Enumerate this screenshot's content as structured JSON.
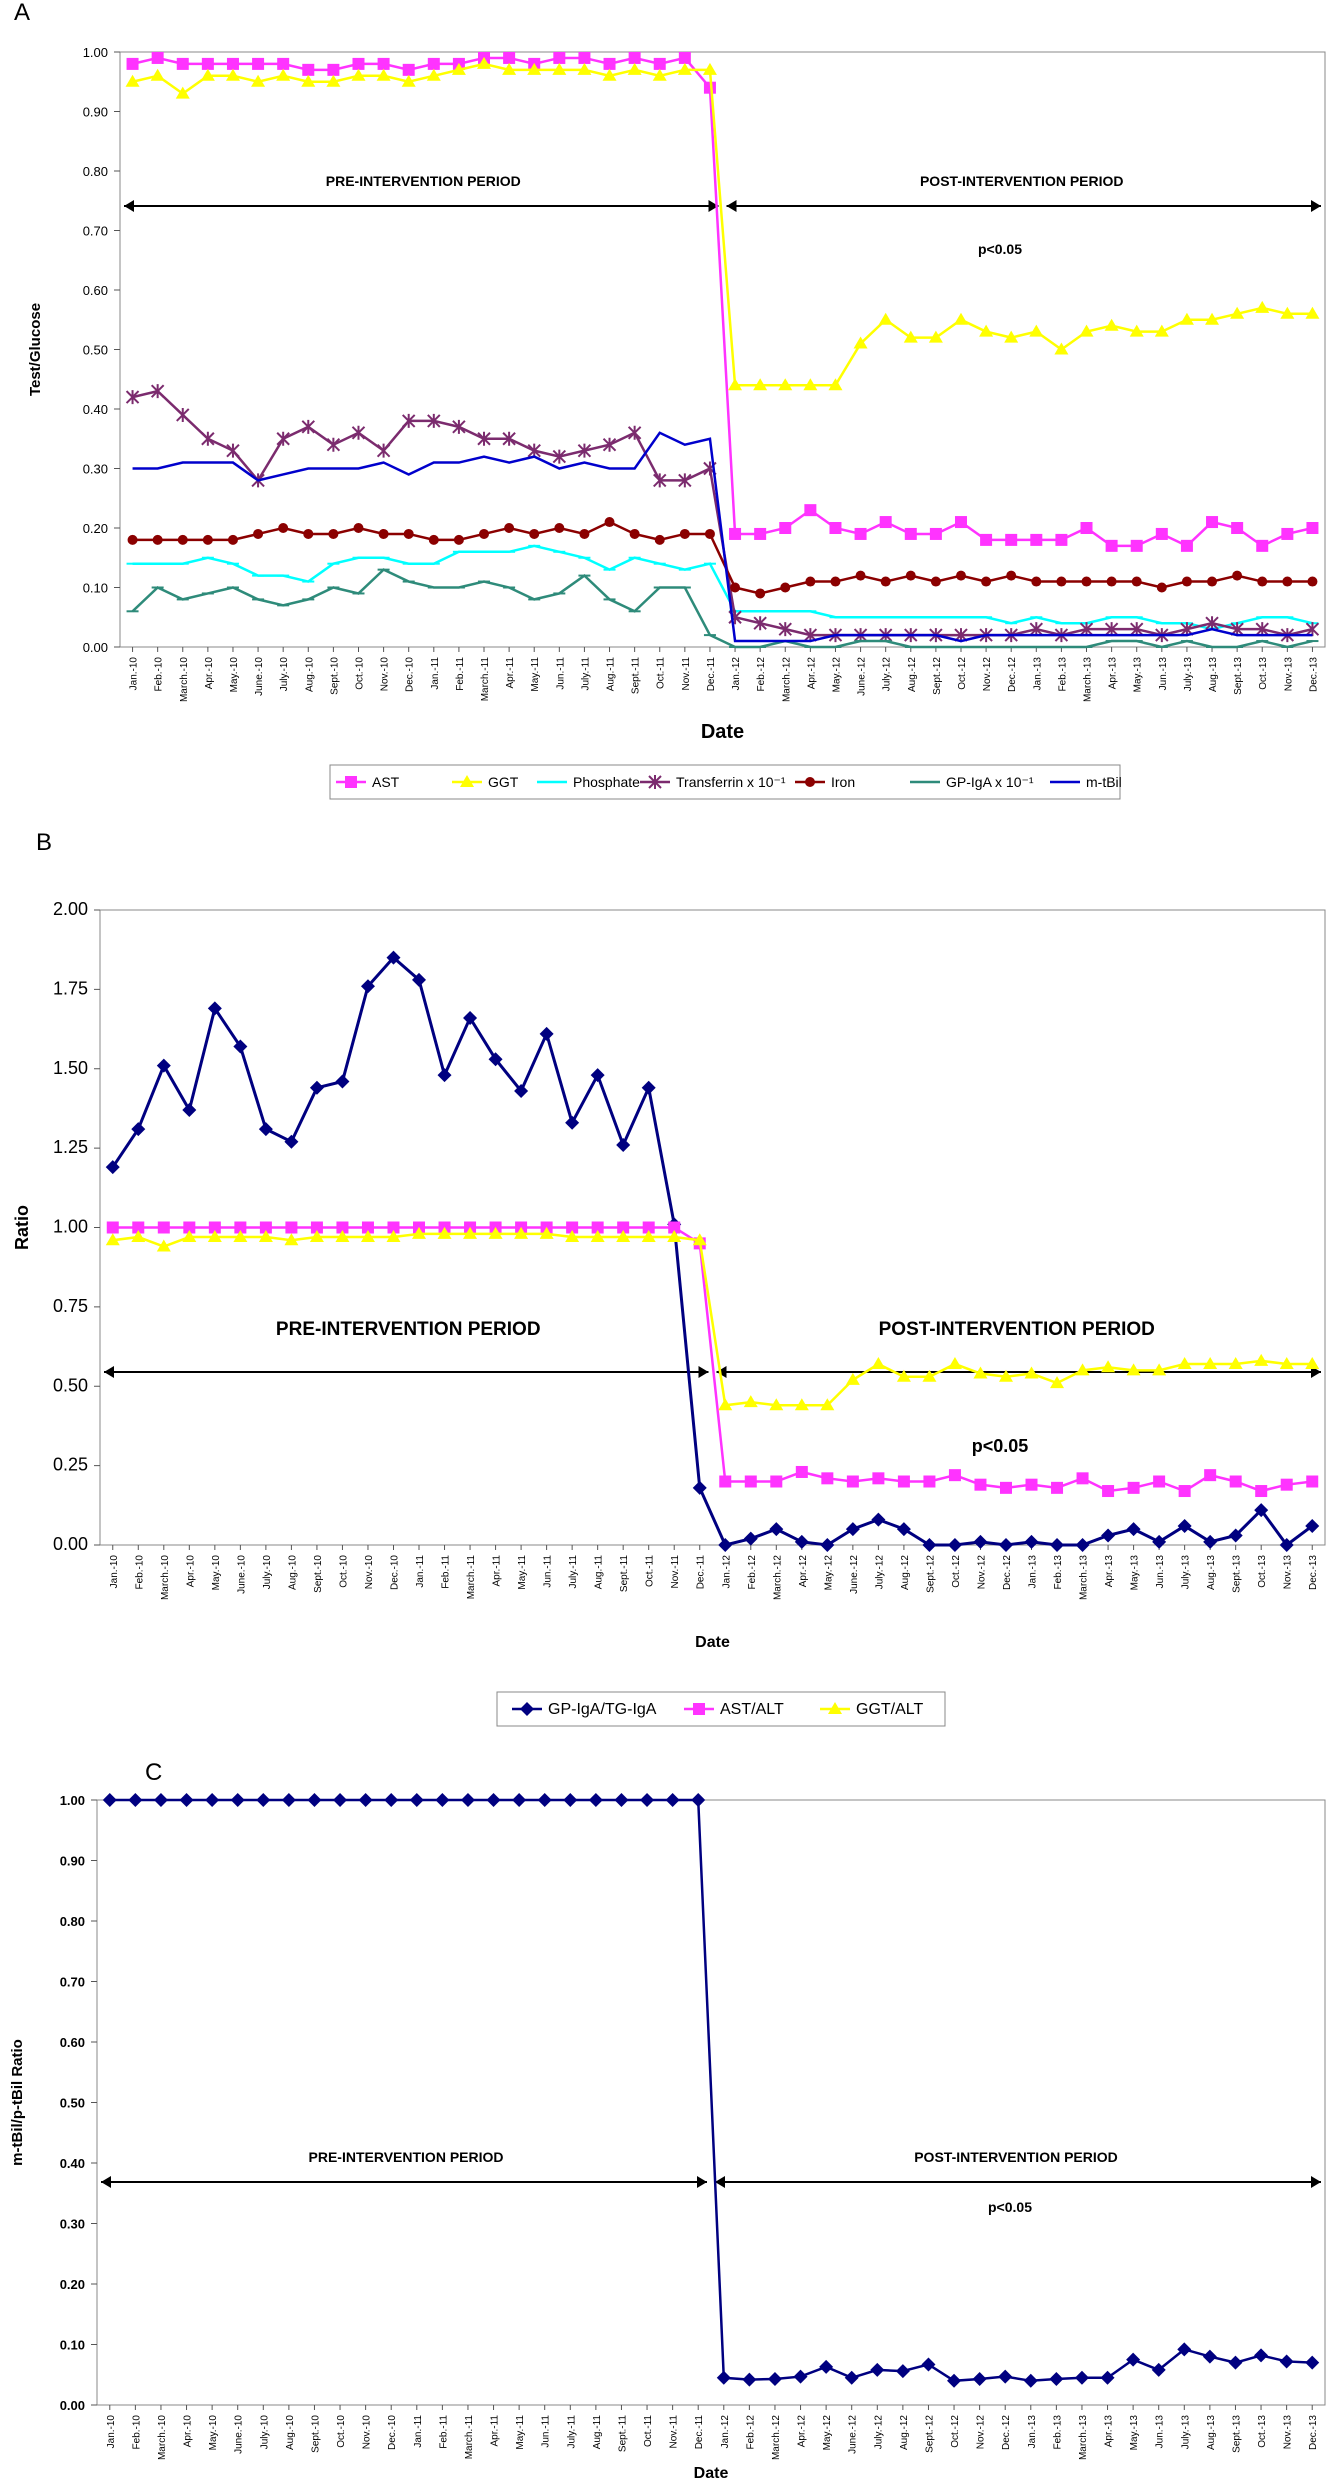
{
  "months": [
    "Jan.-10",
    "Feb.-10",
    "March.-10",
    "Apr.-10",
    "May.-10",
    "June.-10",
    "July.-10",
    "Aug.-10",
    "Sept.-10",
    "Oct.-10",
    "Nov.-10",
    "Dec.-10",
    "Jan.-11",
    "Feb.-11",
    "March.-11",
    "Apr.-11",
    "May.-11",
    "Jun.-11",
    "July.-11",
    "Aug.-11",
    "Sept.-11",
    "Oct.-11",
    "Nov.-11",
    "Dec.-11",
    "Jan.-12",
    "Feb.-12",
    "March.-12",
    "Apr.-12",
    "May.-12",
    "June.-12",
    "July.-12",
    "Aug.-12",
    "Sept.-12",
    "Oct.-12",
    "Nov.-12",
    "Dec.-12",
    "Jan.-13",
    "Feb.-13",
    "March.-13",
    "Apr.-13",
    "May.-13",
    "Jun.-13",
    "July.-13",
    "Aug.-13",
    "Sept.-13",
    "Oct.-13",
    "Nov.-13",
    "Dec.-13"
  ],
  "chart_data": [
    {
      "type": "line",
      "panel_label": "A",
      "title": "",
      "xlabel": "Date",
      "ylabel": "Test/Glucose",
      "ylim": [
        0,
        1.0
      ],
      "yticks": [
        "0.00",
        "0.10",
        "0.20",
        "0.30",
        "0.40",
        "0.50",
        "0.60",
        "0.70",
        "0.80",
        "0.90",
        "1.00"
      ],
      "pre_label": "PRE-INTERVENTION PERIOD",
      "post_label": "POST-INTERVENTION PERIOD",
      "pvalue": "p<0.05",
      "series": [
        {
          "name": "AST",
          "color": "#ff33ff",
          "marker": "square",
          "values": [
            0.98,
            0.99,
            0.98,
            0.98,
            0.98,
            0.98,
            0.98,
            0.97,
            0.97,
            0.98,
            0.98,
            0.97,
            0.98,
            0.98,
            0.99,
            0.99,
            0.98,
            0.99,
            0.99,
            0.98,
            0.99,
            0.98,
            0.99,
            0.94,
            0.19,
            0.19,
            0.2,
            0.23,
            0.2,
            0.19,
            0.21,
            0.19,
            0.19,
            0.21,
            0.18,
            0.18,
            0.18,
            0.18,
            0.2,
            0.17,
            0.17,
            0.19,
            0.17,
            0.21,
            0.2,
            0.17,
            0.19,
            0.2
          ]
        },
        {
          "name": "GGT",
          "color": "#ffff00",
          "marker": "triangle",
          "values": [
            0.95,
            0.96,
            0.93,
            0.96,
            0.96,
            0.95,
            0.96,
            0.95,
            0.95,
            0.96,
            0.96,
            0.95,
            0.96,
            0.97,
            0.98,
            0.97,
            0.97,
            0.97,
            0.97,
            0.96,
            0.97,
            0.96,
            0.97,
            0.97,
            0.44,
            0.44,
            0.44,
            0.44,
            0.44,
            0.51,
            0.55,
            0.52,
            0.52,
            0.55,
            0.53,
            0.52,
            0.53,
            0.5,
            0.53,
            0.54,
            0.53,
            0.53,
            0.55,
            0.55,
            0.56,
            0.57,
            0.56,
            0.56
          ]
        },
        {
          "name": "Phosphate",
          "color": "#00ffff",
          "marker": "dash",
          "values": [
            0.14,
            0.14,
            0.14,
            0.15,
            0.14,
            0.12,
            0.12,
            0.11,
            0.14,
            0.15,
            0.15,
            0.14,
            0.14,
            0.16,
            0.16,
            0.16,
            0.17,
            0.16,
            0.15,
            0.13,
            0.15,
            0.14,
            0.13,
            0.14,
            0.06,
            0.06,
            0.06,
            0.06,
            0.05,
            0.05,
            0.05,
            0.05,
            0.05,
            0.05,
            0.05,
            0.04,
            0.05,
            0.04,
            0.04,
            0.05,
            0.05,
            0.04,
            0.04,
            0.03,
            0.04,
            0.05,
            0.05,
            0.04
          ]
        },
        {
          "name": "Transferrin",
          "suffix": "x 10⁻¹",
          "color": "#7b2b6e",
          "marker": "star",
          "values": [
            0.42,
            0.43,
            0.39,
            0.35,
            0.33,
            0.28,
            0.35,
            0.37,
            0.34,
            0.36,
            0.33,
            0.38,
            0.38,
            0.37,
            0.35,
            0.35,
            0.33,
            0.32,
            0.33,
            0.34,
            0.36,
            0.28,
            0.28,
            0.3,
            0.05,
            0.04,
            0.03,
            0.02,
            0.02,
            0.02,
            0.02,
            0.02,
            0.02,
            0.02,
            0.02,
            0.02,
            0.03,
            0.02,
            0.03,
            0.03,
            0.03,
            0.02,
            0.03,
            0.04,
            0.03,
            0.03,
            0.02,
            0.03
          ]
        },
        {
          "name": "Iron",
          "color": "#8b0000",
          "marker": "circle",
          "values": [
            0.18,
            0.18,
            0.18,
            0.18,
            0.18,
            0.19,
            0.2,
            0.19,
            0.19,
            0.2,
            0.19,
            0.19,
            0.18,
            0.18,
            0.19,
            0.2,
            0.19,
            0.2,
            0.19,
            0.21,
            0.19,
            0.18,
            0.19,
            0.19,
            0.1,
            0.09,
            0.1,
            0.11,
            0.11,
            0.12,
            0.11,
            0.12,
            0.11,
            0.12,
            0.11,
            0.12,
            0.11,
            0.11,
            0.11,
            0.11,
            0.11,
            0.1,
            0.11,
            0.11,
            0.12,
            0.11,
            0.11,
            0.11
          ]
        },
        {
          "name": "GP-IgA",
          "suffix": "x 10⁻¹",
          "color": "#2e8b7a",
          "marker": "dash",
          "values": [
            0.06,
            0.1,
            0.08,
            0.09,
            0.1,
            0.08,
            0.07,
            0.08,
            0.1,
            0.09,
            0.13,
            0.11,
            0.1,
            0.1,
            0.11,
            0.1,
            0.08,
            0.09,
            0.12,
            0.08,
            0.06,
            0.1,
            0.1,
            0.02,
            0.0,
            0.0,
            0.01,
            0.0,
            0.0,
            0.01,
            0.01,
            0.0,
            0.0,
            0.0,
            0.0,
            0.0,
            0.0,
            0.0,
            0.0,
            0.01,
            0.01,
            0.0,
            0.01,
            0.0,
            0.0,
            0.01,
            0.0,
            0.01
          ]
        },
        {
          "name": "m-tBil",
          "color": "#0000cc",
          "marker": "none",
          "values": [
            0.3,
            0.3,
            0.31,
            0.31,
            0.31,
            0.28,
            0.29,
            0.3,
            0.3,
            0.3,
            0.31,
            0.29,
            0.31,
            0.31,
            0.32,
            0.31,
            0.32,
            0.3,
            0.31,
            0.3,
            0.3,
            0.36,
            0.34,
            0.35,
            0.01,
            0.01,
            0.01,
            0.01,
            0.02,
            0.02,
            0.02,
            0.02,
            0.02,
            0.01,
            0.02,
            0.02,
            0.02,
            0.02,
            0.02,
            0.02,
            0.02,
            0.02,
            0.02,
            0.03,
            0.02,
            0.02,
            0.02,
            0.02
          ]
        }
      ]
    },
    {
      "type": "line",
      "panel_label": "B",
      "title": "",
      "xlabel": "Date",
      "ylabel": "Ratio",
      "ylim": [
        0,
        2.0
      ],
      "yticks": [
        "0.00",
        "0.25",
        "0.50",
        "0.75",
        "1.00",
        "1.25",
        "1.50",
        "1.75",
        "2.00"
      ],
      "pre_label": "PRE-INTERVENTION PERIOD",
      "post_label": "POST-INTERVENTION PERIOD",
      "pvalue": "p<0.05",
      "series": [
        {
          "name": "GP-IgA/TG-IgA",
          "color": "#000080",
          "marker": "diamond",
          "values": [
            1.19,
            1.31,
            1.51,
            1.37,
            1.69,
            1.57,
            1.31,
            1.27,
            1.44,
            1.46,
            1.76,
            1.85,
            1.78,
            1.48,
            1.66,
            1.53,
            1.43,
            1.61,
            1.33,
            1.48,
            1.26,
            1.44,
            1.01,
            0.18,
            0.0,
            0.02,
            0.05,
            0.01,
            0.0,
            0.05,
            0.08,
            0.05,
            0.0,
            0.0,
            0.01,
            0.0,
            0.01,
            0.0,
            0.0,
            0.03,
            0.05,
            0.01,
            0.06,
            0.01,
            0.03,
            0.11,
            0.0,
            0.06
          ]
        },
        {
          "name": "AST/ALT",
          "color": "#ff33ff",
          "marker": "square",
          "values": [
            1.0,
            1.0,
            1.0,
            1.0,
            1.0,
            1.0,
            1.0,
            1.0,
            1.0,
            1.0,
            1.0,
            1.0,
            1.0,
            1.0,
            1.0,
            1.0,
            1.0,
            1.0,
            1.0,
            1.0,
            1.0,
            1.0,
            1.0,
            0.95,
            0.2,
            0.2,
            0.2,
            0.23,
            0.21,
            0.2,
            0.21,
            0.2,
            0.2,
            0.22,
            0.19,
            0.18,
            0.19,
            0.18,
            0.21,
            0.17,
            0.18,
            0.2,
            0.17,
            0.22,
            0.2,
            0.17,
            0.19,
            0.2
          ]
        },
        {
          "name": "GGT/ALT",
          "color": "#ffff00",
          "marker": "triangle",
          "values": [
            0.96,
            0.97,
            0.94,
            0.97,
            0.97,
            0.97,
            0.97,
            0.96,
            0.97,
            0.97,
            0.97,
            0.97,
            0.98,
            0.98,
            0.98,
            0.98,
            0.98,
            0.98,
            0.97,
            0.97,
            0.97,
            0.97,
            0.97,
            0.96,
            0.44,
            0.45,
            0.44,
            0.44,
            0.44,
            0.52,
            0.57,
            0.53,
            0.53,
            0.57,
            0.54,
            0.53,
            0.54,
            0.51,
            0.55,
            0.56,
            0.55,
            0.55,
            0.57,
            0.57,
            0.57,
            0.58,
            0.57,
            0.57
          ]
        }
      ]
    },
    {
      "type": "line",
      "panel_label": "C",
      "title": "",
      "xlabel": "Date",
      "ylabel": "m-tBil/p-tBil Ratio",
      "ylim": [
        0,
        1.0
      ],
      "yticks": [
        "0.00",
        "0.10",
        "0.20",
        "0.30",
        "0.40",
        "0.50",
        "0.60",
        "0.70",
        "0.80",
        "0.90",
        "1.00"
      ],
      "pre_label": "PRE-INTERVENTION PERIOD",
      "post_label": "POST-INTERVENTION PERIOD",
      "pvalue": "p<0.05",
      "series": [
        {
          "name": "m-tBil/p-tBil",
          "color": "#000080",
          "marker": "diamond",
          "values": [
            1.0,
            1.0,
            1.0,
            1.0,
            1.0,
            1.0,
            1.0,
            1.0,
            1.0,
            1.0,
            1.0,
            1.0,
            1.0,
            1.0,
            1.0,
            1.0,
            1.0,
            1.0,
            1.0,
            1.0,
            1.0,
            1.0,
            1.0,
            1.0,
            0.045,
            0.042,
            0.043,
            0.047,
            0.063,
            0.045,
            0.058,
            0.056,
            0.067,
            0.04,
            0.043,
            0.047,
            0.04,
            0.043,
            0.045,
            0.045,
            0.075,
            0.058,
            0.092,
            0.08,
            0.07,
            0.082,
            0.072,
            0.07
          ]
        }
      ]
    }
  ]
}
